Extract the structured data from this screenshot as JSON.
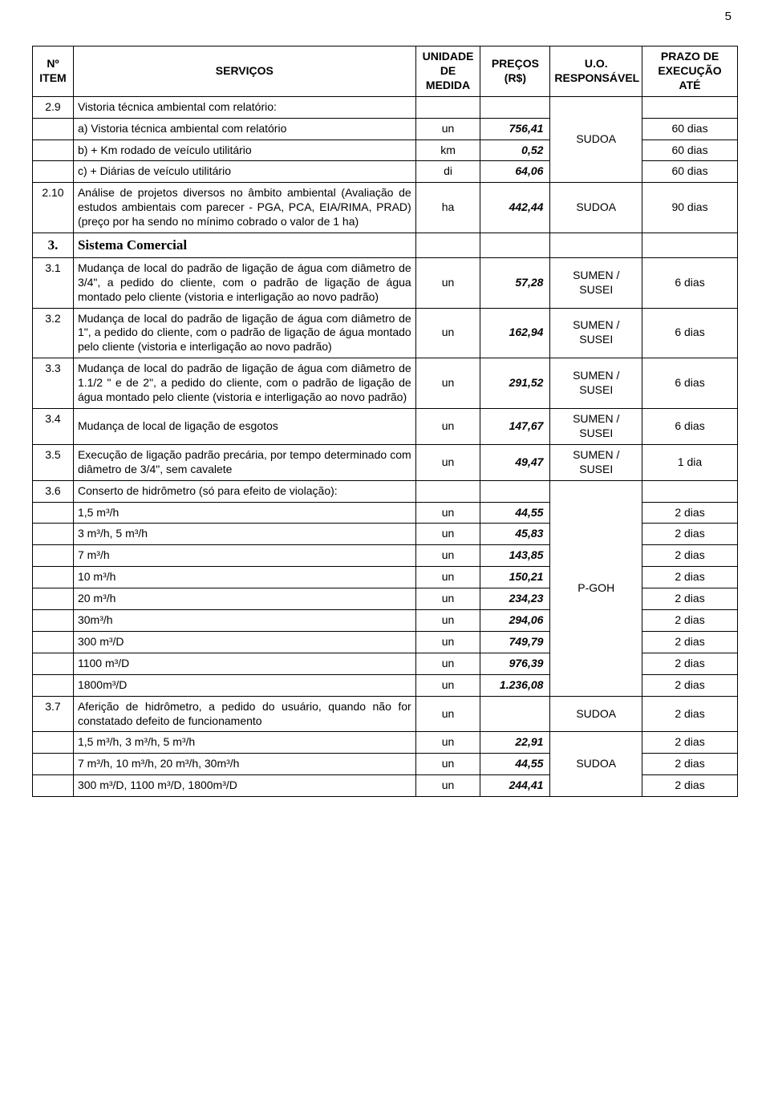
{
  "page_number": "5",
  "header": {
    "num": "Nº ITEM",
    "serv": "SERVIÇOS",
    "unid": "UNIDADE DE MEDIDA",
    "preco": "PREÇOS (R$)",
    "resp": "U.O. RESPONSÁVEL",
    "prazo": "PRAZO DE EXECUÇÃO ATÉ"
  },
  "r29": {
    "num": "2.9",
    "serv": "Vistoria técnica ambiental com relatório:"
  },
  "r29a": {
    "serv": "a) Vistoria técnica ambiental com relatório",
    "unid": "un",
    "preco": "756,41",
    "prazo": "60 dias"
  },
  "r29b": {
    "serv": "b) + Km rodado de veículo utilitário",
    "unid": "km",
    "preco": "0,52",
    "resp": "SUDOA",
    "prazo": "60 dias"
  },
  "r29c": {
    "serv": "c) + Diárias de veículo utilitário",
    "unid": "di",
    "preco": "64,06",
    "prazo": "60 dias"
  },
  "r210": {
    "num": "2.10",
    "serv": "Análise de projetos diversos no âmbito ambiental (Avaliação de estudos ambientais com parecer - PGA, PCA, EIA/RIMA, PRAD) (preço por ha sendo no mínimo cobrado o valor de 1 ha)",
    "unid": "ha",
    "preco": "442,44",
    "resp": "SUDOA",
    "prazo": "90 dias"
  },
  "sec3": {
    "num": "3.",
    "title": "Sistema Comercial"
  },
  "r31": {
    "num": "3.1",
    "serv": "Mudança de local do padrão de ligação de água com diâmetro de 3/4\", a pedido do cliente, com o padrão de ligação de água montado pelo cliente (vistoria e interligação ao novo padrão)",
    "unid": "un",
    "preco": "57,28",
    "resp": "SUMEN / SUSEI",
    "prazo": "6 dias"
  },
  "r32": {
    "num": "3.2",
    "serv": "Mudança de local do padrão de ligação de água com diâmetro de 1\", a pedido do cliente, com o padrão de ligação de água montado pelo cliente (vistoria e interligação ao novo padrão)",
    "unid": "un",
    "preco": "162,94",
    "resp": "SUMEN / SUSEI",
    "prazo": "6 dias"
  },
  "r33": {
    "num": "3.3",
    "serv": "Mudança de local do padrão de ligação de água com diâmetro de 1.1/2 \" e de 2\", a pedido do cliente, com o padrão de ligação de água montado pelo cliente (vistoria e interligação ao novo padrão)",
    "unid": "un",
    "preco": "291,52",
    "resp": "SUMEN / SUSEI",
    "prazo": "6 dias"
  },
  "r34": {
    "num": "3.4",
    "serv": "Mudança de local de ligação de esgotos",
    "unid": "un",
    "preco": "147,67",
    "resp": "SUMEN / SUSEI",
    "prazo": "6 dias"
  },
  "r35": {
    "num": "3.5",
    "serv": "Execução de ligação padrão precária, por tempo determinado com diâmetro de 3/4\", sem cavalete",
    "unid": "un",
    "preco": "49,47",
    "resp": "SUMEN / SUSEI",
    "prazo": "1 dia"
  },
  "r36": {
    "num": "3.6",
    "serv": "Conserto de hidrômetro (só para efeito de violação):"
  },
  "r36a": {
    "serv": "1,5 m³/h",
    "unid": "un",
    "preco": "44,55",
    "prazo": "2 dias"
  },
  "r36b": {
    "serv": "3 m³/h,  5 m³/h",
    "unid": "un",
    "preco": "45,83",
    "prazo": "2 dias"
  },
  "r36c": {
    "serv": "7 m³/h",
    "unid": "un",
    "preco": "143,85",
    "prazo": "2 dias"
  },
  "r36d": {
    "serv": "10 m³/h",
    "unid": "un",
    "preco": "150,21",
    "prazo": "2 dias"
  },
  "r36e": {
    "serv": "20 m³/h",
    "unid": "un",
    "preco": "234,23",
    "resp": "P-GOH",
    "prazo": "2 dias"
  },
  "r36f": {
    "serv": "30m³/h",
    "unid": "un",
    "preco": "294,06",
    "prazo": "2 dias"
  },
  "r36g": {
    "serv": "300 m³/D",
    "unid": "un",
    "preco": "749,79",
    "prazo": "2 dias"
  },
  "r36h": {
    "serv": "1100 m³/D",
    "unid": "un",
    "preco": "976,39",
    "prazo": "2 dias"
  },
  "r36i": {
    "serv": "1800m³/D",
    "unid": "un",
    "preco": "1.236,08",
    "prazo": "2 dias"
  },
  "r37": {
    "num": "3.7",
    "serv": "Aferição de hidrômetro, a pedido do usuário, quando não for constatado defeito de funcionamento",
    "unid": "un",
    "resp": "SUDOA",
    "prazo": "2 dias"
  },
  "r37a": {
    "serv": "1,5 m³/h, 3 m³/h, 5 m³/h",
    "unid": "un",
    "preco": "22,91",
    "prazo": "2 dias"
  },
  "r37b": {
    "serv": "7 m³/h, 10 m³/h, 20 m³/h, 30m³/h",
    "unid": "un",
    "preco": "44,55",
    "resp": "SUDOA",
    "prazo": "2 dias"
  },
  "r37c": {
    "serv": "300 m³/D, 1100 m³/D, 1800m³/D",
    "unid": "un",
    "preco": "244,41",
    "prazo": "2 dias"
  }
}
